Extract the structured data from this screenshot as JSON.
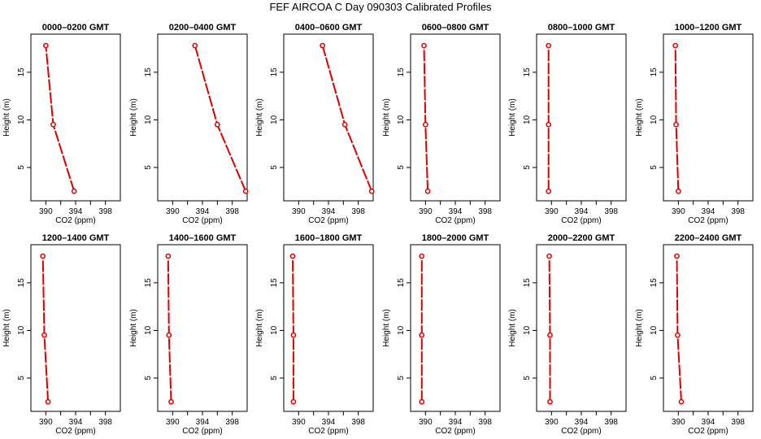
{
  "title": "FEF AIRCOA C  Day 090303  Calibrated Profiles",
  "chart_data": [
    {
      "type": "line",
      "title": "0000–0200 GMT",
      "xlabel": "CO2 (ppm)",
      "ylabel": "Height (m)",
      "xlim": [
        388,
        400
      ],
      "ylim": [
        1.5,
        19
      ],
      "xticks": [
        390,
        394,
        398
      ],
      "yticks": [
        5,
        10,
        15
      ],
      "series": [
        {
          "color": "#dd0000",
          "x": [
            393.8,
            391.0,
            390.0
          ],
          "y": [
            2.5,
            9.5,
            17.8
          ]
        }
      ]
    },
    {
      "type": "line",
      "title": "0200–0400 GMT",
      "xlabel": "CO2 (ppm)",
      "ylabel": "Height (m)",
      "xlim": [
        388,
        400
      ],
      "ylim": [
        1.5,
        19
      ],
      "xticks": [
        390,
        394,
        398
      ],
      "yticks": [
        5,
        10,
        15
      ],
      "series": [
        {
          "color": "#dd0000",
          "x": [
            399.8,
            396.0,
            393.0
          ],
          "y": [
            2.5,
            9.5,
            17.8
          ]
        }
      ]
    },
    {
      "type": "line",
      "title": "0400–0600 GMT",
      "xlabel": "CO2 (ppm)",
      "ylabel": "Height (m)",
      "xlim": [
        388,
        400
      ],
      "ylim": [
        1.5,
        19
      ],
      "xticks": [
        390,
        394,
        398
      ],
      "yticks": [
        5,
        10,
        15
      ],
      "series": [
        {
          "color": "#dd0000",
          "x": [
            399.8,
            396.2,
            393.2
          ],
          "y": [
            2.5,
            9.5,
            17.8
          ]
        }
      ]
    },
    {
      "type": "line",
      "title": "0600–0800 GMT",
      "xlabel": "CO2 (ppm)",
      "ylabel": "Height (m)",
      "xlim": [
        388,
        400
      ],
      "ylim": [
        1.5,
        19
      ],
      "xticks": [
        390,
        394,
        398
      ],
      "yticks": [
        5,
        10,
        15
      ],
      "series": [
        {
          "color": "#dd0000",
          "x": [
            390.3,
            390.0,
            389.8
          ],
          "y": [
            2.5,
            9.5,
            17.8
          ]
        }
      ]
    },
    {
      "type": "line",
      "title": "0800–1000 GMT",
      "xlabel": "CO2 (ppm)",
      "ylabel": "Height (m)",
      "xlim": [
        388,
        400
      ],
      "ylim": [
        1.5,
        19
      ],
      "xticks": [
        390,
        394,
        398
      ],
      "yticks": [
        5,
        10,
        15
      ],
      "series": [
        {
          "color": "#dd0000",
          "x": [
            389.6,
            389.6,
            389.6
          ],
          "y": [
            2.5,
            9.5,
            17.8
          ]
        }
      ]
    },
    {
      "type": "line",
      "title": "1000–1200 GMT",
      "xlabel": "CO2 (ppm)",
      "ylabel": "Height (m)",
      "xlim": [
        388,
        400
      ],
      "ylim": [
        1.5,
        19
      ],
      "xticks": [
        390,
        394,
        398
      ],
      "yticks": [
        5,
        10,
        15
      ],
      "series": [
        {
          "color": "#dd0000",
          "x": [
            390.0,
            389.7,
            389.6
          ],
          "y": [
            2.5,
            9.5,
            17.8
          ]
        }
      ]
    },
    {
      "type": "line",
      "title": "1200–1400 GMT",
      "xlabel": "CO2 (ppm)",
      "ylabel": "Height (m)",
      "xlim": [
        388,
        400
      ],
      "ylim": [
        1.5,
        19
      ],
      "xticks": [
        390,
        394,
        398
      ],
      "yticks": [
        5,
        10,
        15
      ],
      "series": [
        {
          "color": "#dd0000",
          "x": [
            390.3,
            389.8,
            389.6
          ],
          "y": [
            2.5,
            9.5,
            17.8
          ]
        }
      ]
    },
    {
      "type": "line",
      "title": "1400–1600 GMT",
      "xlabel": "CO2 (ppm)",
      "ylabel": "Height (m)",
      "xlim": [
        388,
        400
      ],
      "ylim": [
        1.5,
        19
      ],
      "xticks": [
        390,
        394,
        398
      ],
      "yticks": [
        5,
        10,
        15
      ],
      "series": [
        {
          "color": "#dd0000",
          "x": [
            389.8,
            389.5,
            389.4
          ],
          "y": [
            2.5,
            9.5,
            17.8
          ]
        }
      ]
    },
    {
      "type": "line",
      "title": "1600–1800 GMT",
      "xlabel": "CO2 (ppm)",
      "ylabel": "Height (m)",
      "xlim": [
        388,
        400
      ],
      "ylim": [
        1.5,
        19
      ],
      "xticks": [
        390,
        394,
        398
      ],
      "yticks": [
        5,
        10,
        15
      ],
      "series": [
        {
          "color": "#dd0000",
          "x": [
            389.3,
            389.3,
            389.2
          ],
          "y": [
            2.5,
            9.5,
            17.8
          ]
        }
      ]
    },
    {
      "type": "line",
      "title": "1800–2000 GMT",
      "xlabel": "CO2 (ppm)",
      "ylabel": "Height (m)",
      "xlim": [
        388,
        400
      ],
      "ylim": [
        1.5,
        19
      ],
      "xticks": [
        390,
        394,
        398
      ],
      "yticks": [
        5,
        10,
        15
      ],
      "series": [
        {
          "color": "#dd0000",
          "x": [
            389.5,
            389.5,
            389.5
          ],
          "y": [
            2.5,
            9.5,
            17.8
          ]
        }
      ]
    },
    {
      "type": "line",
      "title": "2000–2200 GMT",
      "xlabel": "CO2 (ppm)",
      "ylabel": "Height (m)",
      "xlim": [
        388,
        400
      ],
      "ylim": [
        1.5,
        19
      ],
      "xticks": [
        390,
        394,
        398
      ],
      "yticks": [
        5,
        10,
        15
      ],
      "series": [
        {
          "color": "#dd0000",
          "x": [
            389.8,
            389.8,
            389.7
          ],
          "y": [
            2.5,
            9.5,
            17.8
          ]
        }
      ]
    },
    {
      "type": "line",
      "title": "2200–2400 GMT",
      "xlabel": "CO2 (ppm)",
      "ylabel": "Height (m)",
      "xlim": [
        388,
        400
      ],
      "ylim": [
        1.5,
        19
      ],
      "xticks": [
        390,
        394,
        398
      ],
      "yticks": [
        5,
        10,
        15
      ],
      "series": [
        {
          "color": "#dd0000",
          "x": [
            390.4,
            389.9,
            389.8
          ],
          "y": [
            2.5,
            9.5,
            17.8
          ]
        }
      ]
    }
  ]
}
